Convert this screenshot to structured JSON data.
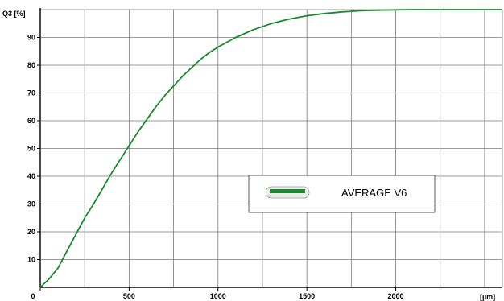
{
  "chart_data": {
    "type": "line",
    "title": "",
    "xlabel": "[µm]",
    "ylabel": "Q3 [%]",
    "xlim": [
      0,
      2600
    ],
    "ylim": [
      0,
      100
    ],
    "x_ticks": [
      0,
      500,
      1000,
      1500,
      2000
    ],
    "y_ticks": [
      10,
      20,
      30,
      40,
      50,
      60,
      70,
      80,
      90
    ],
    "x_tick_labels": [
      "0",
      "500",
      "1000",
      "1500",
      "2000"
    ],
    "y_tick_labels": [
      "10",
      "20",
      "30",
      "40",
      "50",
      "60",
      "70",
      "80",
      "90"
    ],
    "grid": true,
    "legend_position": "center-right",
    "series": [
      {
        "name": "AVERAGE V6",
        "color": "#1a8a2e",
        "x": [
          0,
          50,
          100,
          150,
          200,
          250,
          300,
          350,
          400,
          450,
          500,
          550,
          600,
          650,
          700,
          750,
          800,
          850,
          900,
          950,
          1000,
          1100,
          1200,
          1300,
          1400,
          1500,
          1600,
          1700,
          1800,
          1900,
          2000,
          2100,
          2200,
          2300,
          2400,
          2500,
          2600
        ],
        "y": [
          0,
          3,
          7,
          13,
          19,
          25,
          30,
          35.5,
          41,
          46,
          51,
          56,
          60.5,
          65,
          69,
          72.5,
          76,
          79,
          82,
          84.5,
          86.5,
          90,
          92.8,
          95,
          96.6,
          97.8,
          98.6,
          99.2,
          99.6,
          99.8,
          99.9,
          100,
          100,
          100,
          100,
          100,
          100
        ]
      }
    ]
  }
}
